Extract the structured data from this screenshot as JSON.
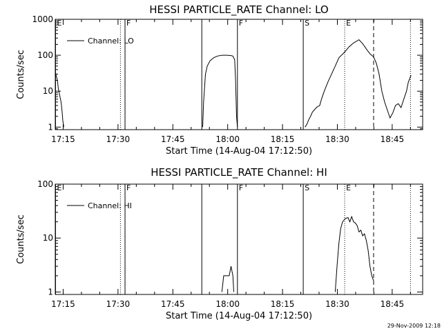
{
  "footer_date": "29-Nov-2009 12:18",
  "chart_data": [
    {
      "type": "line",
      "title": "HESSI PARTICLE_RATE Channel: LO",
      "xlabel": "Start Time (14-Aug-04 17:12:50)",
      "ylabel": "Counts/sec",
      "yscale": "log",
      "ylim": [
        0.85,
        1000
      ],
      "xlim": [
        "17:12:50",
        "18:53:20"
      ],
      "x_ticks": [
        "17:15",
        "17:30",
        "17:45",
        "18:00",
        "18:15",
        "18:30",
        "18:45"
      ],
      "y_ticks": [
        "1",
        "10",
        "100",
        "1000"
      ],
      "legend": "Channel: LO",
      "legend_position": "top-left",
      "markers": [
        {
          "time": "17:12:55",
          "style": "solid",
          "label": "E"
        },
        {
          "time": "17:30:40",
          "style": "dotted",
          "label": ""
        },
        {
          "time": "17:31:55",
          "style": "solid",
          "label": "F"
        },
        {
          "time": "17:52:55",
          "style": "solid",
          "label": ""
        },
        {
          "time": "18:02:40",
          "style": "solid",
          "label": "F"
        },
        {
          "time": "18:20:40",
          "style": "solid",
          "label": "S"
        },
        {
          "time": "18:32:00",
          "style": "dotted",
          "label": "E"
        },
        {
          "time": "18:39:55",
          "style": "dashed",
          "label": ""
        },
        {
          "time": "18:50:00",
          "style": "dotted",
          "label": ""
        }
      ],
      "segments": [
        [
          [
            "17:12:55",
            32
          ],
          [
            "17:13:25",
            20
          ],
          [
            "17:13:40",
            12
          ],
          [
            "17:13:55",
            9
          ],
          [
            "17:14:25",
            5
          ],
          [
            "17:14:40",
            3
          ],
          [
            "17:14:55",
            1.5
          ],
          [
            "17:15:10",
            1
          ]
        ],
        [
          [
            "17:53:10",
            1
          ],
          [
            "17:53:25",
            5
          ],
          [
            "17:53:55",
            30
          ],
          [
            "17:54:25",
            50
          ],
          [
            "17:55:10",
            70
          ],
          [
            "17:56:10",
            85
          ],
          [
            "17:57:10",
            95
          ],
          [
            "17:58:25",
            100
          ],
          [
            "17:59:55",
            100
          ],
          [
            "18:00:55",
            98
          ],
          [
            "18:01:25",
            95
          ],
          [
            "18:01:55",
            75
          ],
          [
            "18:02:10",
            20
          ],
          [
            "18:02:25",
            2
          ],
          [
            "18:02:40",
            1
          ]
        ],
        [
          [
            "18:21:10",
            1
          ],
          [
            "18:21:40",
            1.2
          ],
          [
            "18:22:10",
            1.6
          ],
          [
            "18:22:40",
            2
          ],
          [
            "18:23:10",
            2.6
          ],
          [
            "18:23:40",
            3
          ],
          [
            "18:24:25",
            3.6
          ],
          [
            "18:25:10",
            4
          ],
          [
            "18:25:40",
            6
          ],
          [
            "18:26:25",
            10
          ],
          [
            "18:27:25",
            18
          ],
          [
            "18:28:25",
            30
          ],
          [
            "18:29:25",
            50
          ],
          [
            "18:30:25",
            85
          ],
          [
            "18:31:55",
            120
          ],
          [
            "18:33:10",
            170
          ],
          [
            "18:34:25",
            220
          ],
          [
            "18:35:55",
            270
          ],
          [
            "18:36:55",
            210
          ],
          [
            "18:37:55",
            150
          ],
          [
            "18:38:55",
            110
          ],
          [
            "18:39:55",
            90
          ],
          [
            "18:40:40",
            60
          ],
          [
            "18:41:25",
            30
          ],
          [
            "18:42:10",
            10
          ],
          [
            "18:42:55",
            5
          ],
          [
            "18:43:55",
            2.5
          ],
          [
            "18:44:25",
            1.8
          ],
          [
            "18:45:10",
            2.5
          ],
          [
            "18:45:55",
            4
          ],
          [
            "18:46:40",
            4.5
          ],
          [
            "18:47:25",
            3.5
          ],
          [
            "18:48:10",
            6
          ],
          [
            "18:48:55",
            10
          ],
          [
            "18:49:25",
            18
          ],
          [
            "18:50:10",
            28
          ]
        ]
      ]
    },
    {
      "type": "line",
      "title": "HESSI PARTICLE_RATE Channel: HI",
      "xlabel": "Start Time (14-Aug-04 17:12:50)",
      "ylabel": "Counts/sec",
      "yscale": "log",
      "ylim": [
        0.9,
        100
      ],
      "xlim": [
        "17:12:50",
        "18:53:20"
      ],
      "x_ticks": [
        "17:15",
        "17:30",
        "17:45",
        "18:00",
        "18:15",
        "18:30",
        "18:45"
      ],
      "y_ticks": [
        "1",
        "10",
        "100"
      ],
      "legend": "Channel: HI",
      "legend_position": "top-left",
      "markers": [
        {
          "time": "17:12:55",
          "style": "solid",
          "label": "E"
        },
        {
          "time": "17:30:40",
          "style": "dotted",
          "label": ""
        },
        {
          "time": "17:31:55",
          "style": "solid",
          "label": "F"
        },
        {
          "time": "17:52:55",
          "style": "solid",
          "label": ""
        },
        {
          "time": "18:02:40",
          "style": "solid",
          "label": "F"
        },
        {
          "time": "18:20:40",
          "style": "solid",
          "label": "S"
        },
        {
          "time": "18:32:00",
          "style": "dotted",
          "label": "E"
        },
        {
          "time": "18:39:55",
          "style": "dashed",
          "label": ""
        },
        {
          "time": "18:50:00",
          "style": "dotted",
          "label": ""
        }
      ],
      "segments": [
        [
          [
            "17:58:25",
            1
          ],
          [
            "17:58:55",
            2
          ],
          [
            "17:59:55",
            2
          ],
          [
            "18:00:25",
            2
          ],
          [
            "18:00:55",
            3
          ],
          [
            "18:01:25",
            2
          ],
          [
            "18:01:40",
            1
          ]
        ],
        [
          [
            "18:29:25",
            1
          ],
          [
            "18:29:55",
            3
          ],
          [
            "18:30:25",
            8
          ],
          [
            "18:30:55",
            15
          ],
          [
            "18:31:25",
            20
          ],
          [
            "18:32:10",
            23
          ],
          [
            "18:32:55",
            24
          ],
          [
            "18:33:25",
            20
          ],
          [
            "18:33:55",
            25
          ],
          [
            "18:34:25",
            20
          ],
          [
            "18:34:55",
            19
          ],
          [
            "18:35:25",
            17
          ],
          [
            "18:35:55",
            13
          ],
          [
            "18:36:25",
            14
          ],
          [
            "18:36:55",
            11
          ],
          [
            "18:37:25",
            12
          ],
          [
            "18:37:55",
            9
          ],
          [
            "18:38:25",
            6
          ],
          [
            "18:38:55",
            3
          ],
          [
            "18:39:25",
            2
          ],
          [
            "18:39:55",
            1.6
          ]
        ]
      ]
    }
  ]
}
